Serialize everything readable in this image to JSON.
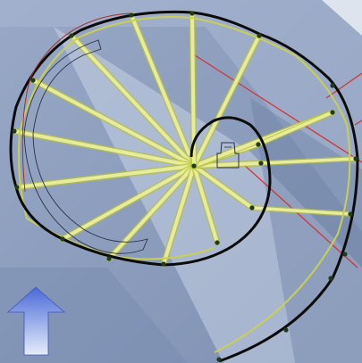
{
  "viewport": {
    "label": "",
    "icons": [
      "north-arrow-icon"
    ]
  },
  "colors": {
    "background": "#8f9fbd",
    "light_panel": "#b9c7dd",
    "pale_panel": "#d4deeb",
    "dark_panel": "#6f82a6",
    "outline": "#0b0b0b",
    "spoke": "#e8ec9a",
    "spoke_edge": "#b6c23a",
    "stringer": "#c8cf55",
    "red_line": "#d23030",
    "marker": "#1f3a1f",
    "arrow": "#4a69d8"
  }
}
